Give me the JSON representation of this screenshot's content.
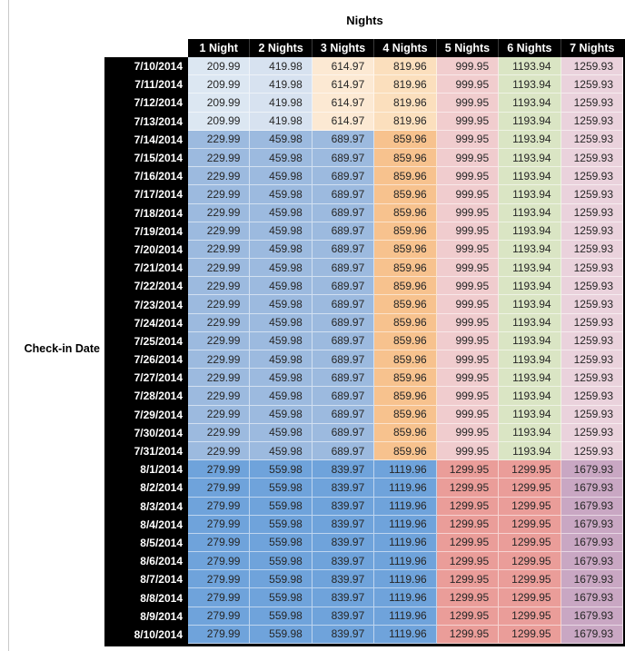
{
  "chart_data": {
    "type": "heatmap",
    "title": "Nights",
    "ylabel": "Check-in Date",
    "columns": [
      "1 Night",
      "2 Nights",
      "3 Nights",
      "4 Nights",
      "5 Nights",
      "6 Nights",
      "7 Nights"
    ],
    "tier_colors": {
      "low": [
        "#DCE7F2",
        "#D7E2F0",
        "#FCE9D3",
        "#FBDFBD",
        "#F1CDCE",
        "#DAE5C4",
        "#EAD2DC"
      ],
      "mid": [
        "#9CBADF",
        "#9CBADF",
        "#9CBADF",
        "#F7C28E",
        "#F0CCCE",
        "#DAE5C4",
        "#EAD2DC"
      ],
      "high": [
        "#6FA3DB",
        "#6FA3DB",
        "#6FA3DB",
        "#6FA3DB",
        "#EA9D99",
        "#EA9D99",
        "#C9A7C3"
      ]
    },
    "header_bg": "#000000",
    "header_text_color": "#FFFFFF",
    "value_text_color": "#262626",
    "rows": [
      {
        "date": "7/10/2014",
        "tier": "low",
        "values": [
          209.99,
          419.98,
          614.97,
          819.96,
          999.95,
          1193.94,
          1259.93
        ]
      },
      {
        "date": "7/11/2014",
        "tier": "low",
        "values": [
          209.99,
          419.98,
          614.97,
          819.96,
          999.95,
          1193.94,
          1259.93
        ]
      },
      {
        "date": "7/12/2014",
        "tier": "low",
        "values": [
          209.99,
          419.98,
          614.97,
          819.96,
          999.95,
          1193.94,
          1259.93
        ]
      },
      {
        "date": "7/13/2014",
        "tier": "low",
        "values": [
          209.99,
          419.98,
          614.97,
          819.96,
          999.95,
          1193.94,
          1259.93
        ]
      },
      {
        "date": "7/14/2014",
        "tier": "mid",
        "values": [
          229.99,
          459.98,
          689.97,
          859.96,
          999.95,
          1193.94,
          1259.93
        ]
      },
      {
        "date": "7/15/2014",
        "tier": "mid",
        "values": [
          229.99,
          459.98,
          689.97,
          859.96,
          999.95,
          1193.94,
          1259.93
        ]
      },
      {
        "date": "7/16/2014",
        "tier": "mid",
        "values": [
          229.99,
          459.98,
          689.97,
          859.96,
          999.95,
          1193.94,
          1259.93
        ]
      },
      {
        "date": "7/17/2014",
        "tier": "mid",
        "values": [
          229.99,
          459.98,
          689.97,
          859.96,
          999.95,
          1193.94,
          1259.93
        ]
      },
      {
        "date": "7/18/2014",
        "tier": "mid",
        "values": [
          229.99,
          459.98,
          689.97,
          859.96,
          999.95,
          1193.94,
          1259.93
        ]
      },
      {
        "date": "7/19/2014",
        "tier": "mid",
        "values": [
          229.99,
          459.98,
          689.97,
          859.96,
          999.95,
          1193.94,
          1259.93
        ]
      },
      {
        "date": "7/20/2014",
        "tier": "mid",
        "values": [
          229.99,
          459.98,
          689.97,
          859.96,
          999.95,
          1193.94,
          1259.93
        ]
      },
      {
        "date": "7/21/2014",
        "tier": "mid",
        "values": [
          229.99,
          459.98,
          689.97,
          859.96,
          999.95,
          1193.94,
          1259.93
        ]
      },
      {
        "date": "7/22/2014",
        "tier": "mid",
        "values": [
          229.99,
          459.98,
          689.97,
          859.96,
          999.95,
          1193.94,
          1259.93
        ]
      },
      {
        "date": "7/23/2014",
        "tier": "mid",
        "values": [
          229.99,
          459.98,
          689.97,
          859.96,
          999.95,
          1193.94,
          1259.93
        ]
      },
      {
        "date": "7/24/2014",
        "tier": "mid",
        "values": [
          229.99,
          459.98,
          689.97,
          859.96,
          999.95,
          1193.94,
          1259.93
        ]
      },
      {
        "date": "7/25/2014",
        "tier": "mid",
        "values": [
          229.99,
          459.98,
          689.97,
          859.96,
          999.95,
          1193.94,
          1259.93
        ]
      },
      {
        "date": "7/26/2014",
        "tier": "mid",
        "values": [
          229.99,
          459.98,
          689.97,
          859.96,
          999.95,
          1193.94,
          1259.93
        ]
      },
      {
        "date": "7/27/2014",
        "tier": "mid",
        "values": [
          229.99,
          459.98,
          689.97,
          859.96,
          999.95,
          1193.94,
          1259.93
        ]
      },
      {
        "date": "7/28/2014",
        "tier": "mid",
        "values": [
          229.99,
          459.98,
          689.97,
          859.96,
          999.95,
          1193.94,
          1259.93
        ]
      },
      {
        "date": "7/29/2014",
        "tier": "mid",
        "values": [
          229.99,
          459.98,
          689.97,
          859.96,
          999.95,
          1193.94,
          1259.93
        ]
      },
      {
        "date": "7/30/2014",
        "tier": "mid",
        "values": [
          229.99,
          459.98,
          689.97,
          859.96,
          999.95,
          1193.94,
          1259.93
        ]
      },
      {
        "date": "7/31/2014",
        "tier": "mid",
        "values": [
          229.99,
          459.98,
          689.97,
          859.96,
          999.95,
          1193.94,
          1259.93
        ]
      },
      {
        "date": "8/1/2014",
        "tier": "high",
        "values": [
          279.99,
          559.98,
          839.97,
          1119.96,
          1299.95,
          1299.95,
          1679.93
        ]
      },
      {
        "date": "8/2/2014",
        "tier": "high",
        "values": [
          279.99,
          559.98,
          839.97,
          1119.96,
          1299.95,
          1299.95,
          1679.93
        ]
      },
      {
        "date": "8/3/2014",
        "tier": "high",
        "values": [
          279.99,
          559.98,
          839.97,
          1119.96,
          1299.95,
          1299.95,
          1679.93
        ]
      },
      {
        "date": "8/4/2014",
        "tier": "high",
        "values": [
          279.99,
          559.98,
          839.97,
          1119.96,
          1299.95,
          1299.95,
          1679.93
        ]
      },
      {
        "date": "8/5/2014",
        "tier": "high",
        "values": [
          279.99,
          559.98,
          839.97,
          1119.96,
          1299.95,
          1299.95,
          1679.93
        ]
      },
      {
        "date": "8/6/2014",
        "tier": "high",
        "values": [
          279.99,
          559.98,
          839.97,
          1119.96,
          1299.95,
          1299.95,
          1679.93
        ]
      },
      {
        "date": "8/7/2014",
        "tier": "high",
        "values": [
          279.99,
          559.98,
          839.97,
          1119.96,
          1299.95,
          1299.95,
          1679.93
        ]
      },
      {
        "date": "8/8/2014",
        "tier": "high",
        "values": [
          279.99,
          559.98,
          839.97,
          1119.96,
          1299.95,
          1299.95,
          1679.93
        ]
      },
      {
        "date": "8/9/2014",
        "tier": "high",
        "values": [
          279.99,
          559.98,
          839.97,
          1119.96,
          1299.95,
          1299.95,
          1679.93
        ]
      },
      {
        "date": "8/10/2014",
        "tier": "high",
        "values": [
          279.99,
          559.98,
          839.97,
          1119.96,
          1299.95,
          1299.95,
          1679.93
        ]
      }
    ]
  }
}
